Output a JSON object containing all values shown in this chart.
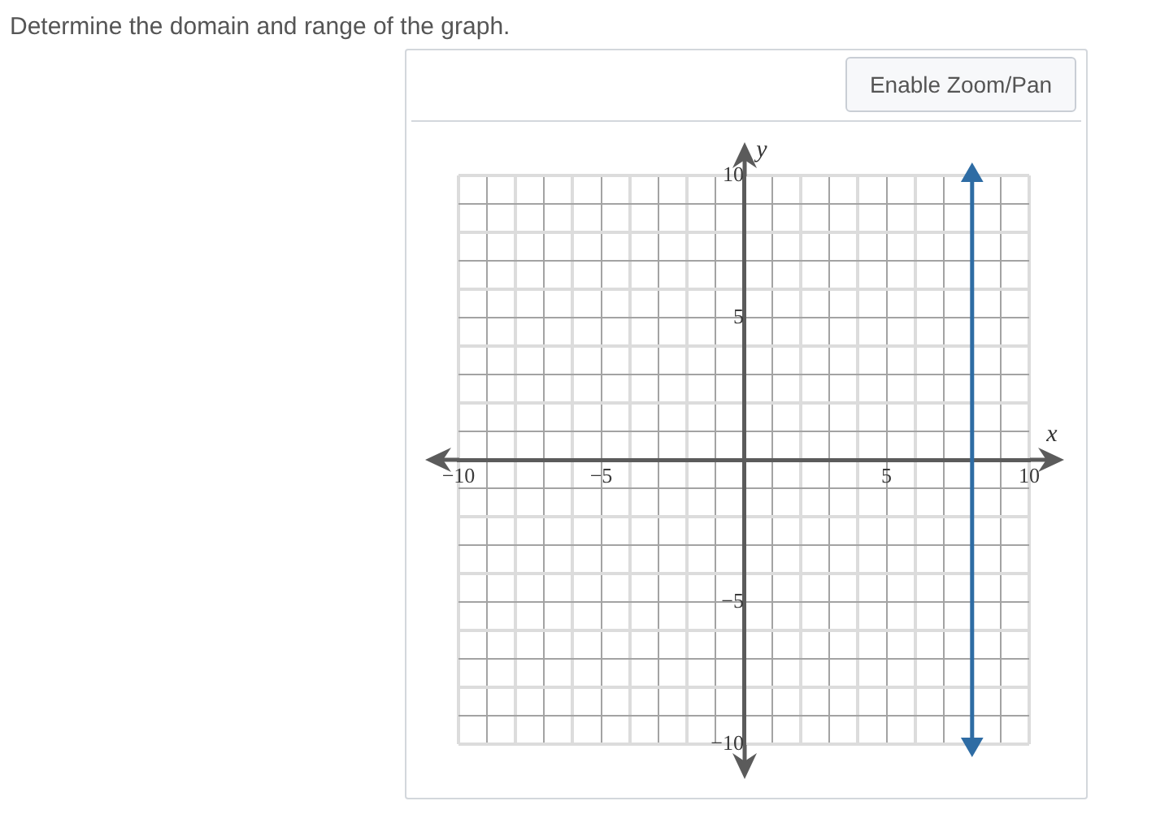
{
  "chart_data": {
    "type": "line",
    "title": "Determine the domain and range of the graph.",
    "xlabel": "x",
    "ylabel": "y",
    "annotations": [
      "Enable Zoom/Pan"
    ],
    "x": [
      8,
      8
    ],
    "series": [
      {
        "color": "#2e6ca4",
        "values": [
          -10,
          10
        ]
      }
    ],
    "xlim": [
      -10,
      10
    ],
    "ylim": [
      -10,
      10
    ],
    "xticks": [
      {
        "value": -10,
        "label": "−10"
      },
      {
        "value": -9,
        "label": null
      },
      {
        "value": -8,
        "label": null
      },
      {
        "value": -7,
        "label": null
      },
      {
        "value": -6,
        "label": null
      },
      {
        "value": -5,
        "label": "−5"
      },
      {
        "value": -4,
        "label": null
      },
      {
        "value": -3,
        "label": null
      },
      {
        "value": -2,
        "label": null
      },
      {
        "value": -1,
        "label": null
      },
      {
        "value": 0,
        "label": null
      },
      {
        "value": 1,
        "label": null
      },
      {
        "value": 2,
        "label": null
      },
      {
        "value": 3,
        "label": null
      },
      {
        "value": 4,
        "label": null
      },
      5,
      {
        "value": 6,
        "label": null
      },
      {
        "value": 7,
        "label": null
      },
      {
        "value": 8,
        "label": null
      },
      {
        "value": 9,
        "label": null
      },
      10
    ],
    "yticks": [
      {
        "value": -10,
        "label": "−10"
      },
      {
        "value": -9,
        "label": null
      },
      {
        "value": -8,
        "label": null
      },
      {
        "value": -7,
        "label": null
      },
      {
        "value": -6,
        "label": null
      },
      {
        "value": -5,
        "label": "−5"
      },
      {
        "value": -4,
        "label": null
      },
      {
        "value": -3,
        "label": null
      },
      {
        "value": -2,
        "label": null
      },
      {
        "value": -1,
        "label": null
      },
      {
        "value": 0,
        "label": null
      },
      {
        "value": 1,
        "label": null
      },
      {
        "value": 2,
        "label": null
      },
      {
        "value": 3,
        "label": null
      },
      {
        "value": 4,
        "label": null
      },
      5,
      {
        "value": 6,
        "label": null
      },
      {
        "value": 7,
        "label": null
      },
      {
        "value": 8,
        "label": null
      },
      {
        "value": 9,
        "label": null
      },
      10
    ],
    "grid": true,
    "marker": "triangle",
    "line_style": "solid"
  }
}
